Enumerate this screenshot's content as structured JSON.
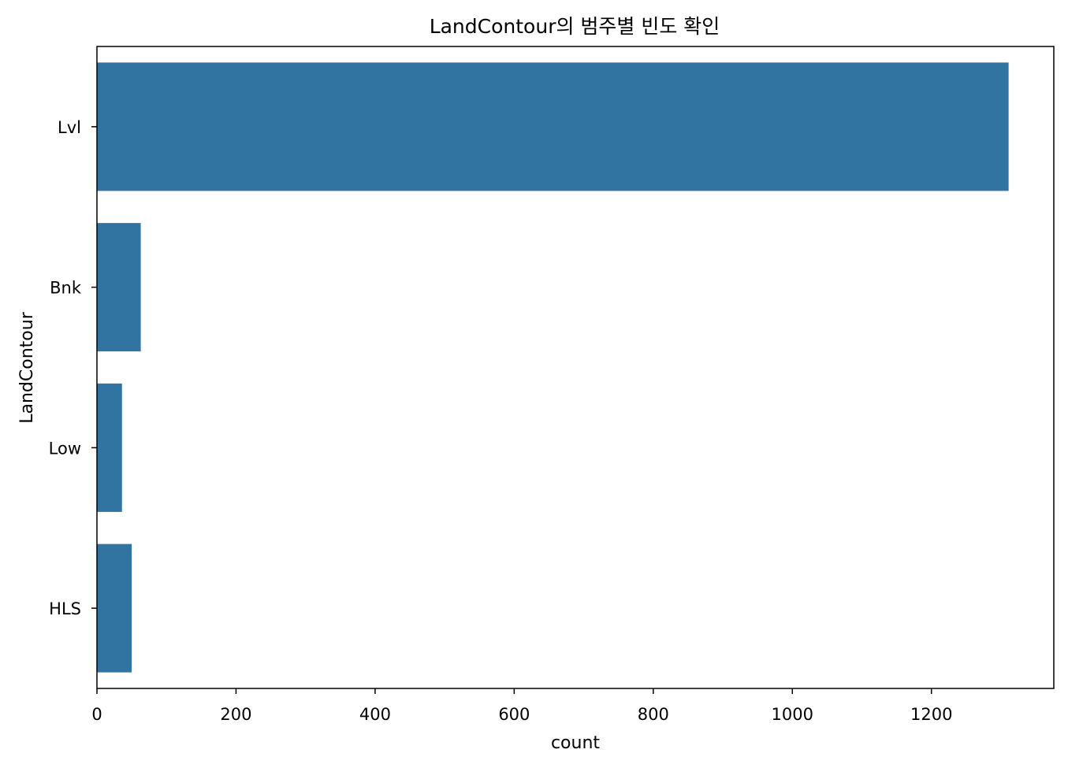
{
  "chart_data": {
    "type": "bar",
    "orientation": "horizontal",
    "title": "LandContour의 범주별 빈도 확인",
    "xlabel": "count",
    "ylabel": "LandContour",
    "categories": [
      "Lvl",
      "Bnk",
      "Low",
      "HLS"
    ],
    "values": [
      1311,
      63,
      36,
      50
    ],
    "xlim": [
      0,
      1376
    ],
    "xticks": [
      0,
      200,
      400,
      600,
      800,
      1000,
      1200
    ],
    "grid": false,
    "bar_color": "#3274a1"
  }
}
